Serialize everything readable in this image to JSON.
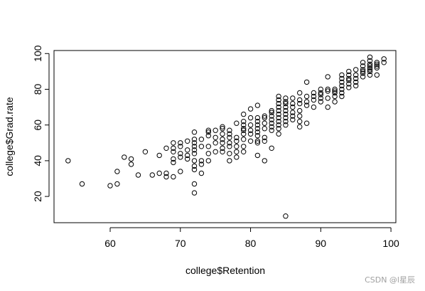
{
  "watermark": "CSDN @l星辰",
  "chart_data": {
    "type": "scatter",
    "title": "",
    "xlabel": "college$Retention",
    "ylabel": "college$Grad.rate",
    "xlim": [
      52.0,
      100.7
    ],
    "ylim": [
      5.3,
      101.7
    ],
    "xticks": [
      60,
      70,
      80,
      90,
      100
    ],
    "yticks": [
      20,
      40,
      60,
      80,
      100
    ],
    "grid": false,
    "legend": "none",
    "marker": "open-circle",
    "colors": {
      "marker": "#000000",
      "axis": "#000000",
      "background": "#ffffff"
    },
    "points": [
      [
        54,
        40
      ],
      [
        56,
        27
      ],
      [
        60,
        26
      ],
      [
        61,
        27
      ],
      [
        61,
        34
      ],
      [
        62,
        42
      ],
      [
        63,
        38
      ],
      [
        63,
        41
      ],
      [
        64,
        32
      ],
      [
        65,
        45
      ],
      [
        66,
        32
      ],
      [
        67,
        33
      ],
      [
        67,
        43
      ],
      [
        68,
        31
      ],
      [
        68,
        33
      ],
      [
        68,
        47
      ],
      [
        69,
        31
      ],
      [
        69,
        39
      ],
      [
        69,
        41
      ],
      [
        69,
        45
      ],
      [
        69,
        47
      ],
      [
        69,
        50
      ],
      [
        70,
        34
      ],
      [
        70,
        42
      ],
      [
        70,
        44
      ],
      [
        70,
        48
      ],
      [
        70,
        50
      ],
      [
        71,
        41
      ],
      [
        71,
        43
      ],
      [
        71,
        46
      ],
      [
        71,
        51
      ],
      [
        72,
        22
      ],
      [
        72,
        27
      ],
      [
        72,
        35
      ],
      [
        72,
        37
      ],
      [
        72,
        40
      ],
      [
        72,
        44
      ],
      [
        72,
        46
      ],
      [
        72,
        48
      ],
      [
        72,
        50
      ],
      [
        72,
        52
      ],
      [
        72,
        56
      ],
      [
        73,
        33
      ],
      [
        73,
        38
      ],
      [
        73,
        40
      ],
      [
        73,
        48
      ],
      [
        73,
        52
      ],
      [
        74,
        40
      ],
      [
        74,
        44
      ],
      [
        74,
        48
      ],
      [
        74,
        54
      ],
      [
        74,
        56
      ],
      [
        74,
        57
      ],
      [
        75,
        45
      ],
      [
        75,
        50
      ],
      [
        75,
        53
      ],
      [
        75,
        57
      ],
      [
        76,
        45
      ],
      [
        76,
        47
      ],
      [
        76,
        50
      ],
      [
        76,
        52
      ],
      [
        76,
        55
      ],
      [
        76,
        58
      ],
      [
        76,
        59
      ],
      [
        77,
        40
      ],
      [
        77,
        44
      ],
      [
        77,
        48
      ],
      [
        77,
        50
      ],
      [
        77,
        53
      ],
      [
        77,
        55
      ],
      [
        77,
        57
      ],
      [
        78,
        42
      ],
      [
        78,
        45
      ],
      [
        78,
        48
      ],
      [
        78,
        51
      ],
      [
        78,
        53
      ],
      [
        78,
        61
      ],
      [
        79,
        45
      ],
      [
        79,
        48
      ],
      [
        79,
        52
      ],
      [
        79,
        55
      ],
      [
        79,
        57
      ],
      [
        79,
        58
      ],
      [
        79,
        60
      ],
      [
        79,
        62
      ],
      [
        79,
        66
      ],
      [
        80,
        51
      ],
      [
        80,
        55
      ],
      [
        80,
        57
      ],
      [
        80,
        60
      ],
      [
        80,
        64
      ],
      [
        80,
        69
      ],
      [
        81,
        43
      ],
      [
        81,
        50
      ],
      [
        81,
        51
      ],
      [
        81,
        54
      ],
      [
        81,
        56
      ],
      [
        81,
        58
      ],
      [
        81,
        60
      ],
      [
        81,
        62
      ],
      [
        81,
        64
      ],
      [
        81,
        71
      ],
      [
        82,
        40
      ],
      [
        82,
        51
      ],
      [
        82,
        53
      ],
      [
        82,
        58
      ],
      [
        82,
        61
      ],
      [
        82,
        64
      ],
      [
        82,
        65
      ],
      [
        83,
        47
      ],
      [
        83,
        57
      ],
      [
        83,
        59
      ],
      [
        83,
        61
      ],
      [
        83,
        63
      ],
      [
        83,
        65
      ],
      [
        83,
        67
      ],
      [
        83,
        68
      ],
      [
        84,
        55
      ],
      [
        84,
        58
      ],
      [
        84,
        60
      ],
      [
        84,
        62
      ],
      [
        84,
        64
      ],
      [
        84,
        66
      ],
      [
        84,
        68
      ],
      [
        84,
        70
      ],
      [
        84,
        72
      ],
      [
        84,
        74
      ],
      [
        84,
        76
      ],
      [
        85,
        9
      ],
      [
        85,
        60
      ],
      [
        85,
        62
      ],
      [
        85,
        64
      ],
      [
        85,
        66
      ],
      [
        85,
        68
      ],
      [
        85,
        70
      ],
      [
        85,
        72
      ],
      [
        85,
        73
      ],
      [
        85,
        75
      ],
      [
        86,
        63
      ],
      [
        86,
        65
      ],
      [
        86,
        67
      ],
      [
        86,
        70
      ],
      [
        86,
        72
      ],
      [
        86,
        75
      ],
      [
        87,
        59
      ],
      [
        87,
        62
      ],
      [
        87,
        65
      ],
      [
        87,
        68
      ],
      [
        87,
        72
      ],
      [
        87,
        74
      ],
      [
        87,
        78
      ],
      [
        88,
        61
      ],
      [
        88,
        71
      ],
      [
        88,
        73
      ],
      [
        88,
        76
      ],
      [
        88,
        84
      ],
      [
        89,
        70
      ],
      [
        89,
        74
      ],
      [
        89,
        76
      ],
      [
        89,
        78
      ],
      [
        90,
        73
      ],
      [
        90,
        75
      ],
      [
        90,
        77
      ],
      [
        90,
        78
      ],
      [
        90,
        80
      ],
      [
        91,
        70
      ],
      [
        91,
        75
      ],
      [
        91,
        79
      ],
      [
        91,
        80
      ],
      [
        91,
        87
      ],
      [
        92,
        73
      ],
      [
        92,
        76
      ],
      [
        92,
        78
      ],
      [
        92,
        79
      ],
      [
        92,
        80
      ],
      [
        93,
        76
      ],
      [
        93,
        78
      ],
      [
        93,
        80
      ],
      [
        93,
        82
      ],
      [
        93,
        84
      ],
      [
        93,
        86
      ],
      [
        93,
        88
      ],
      [
        94,
        81
      ],
      [
        94,
        83
      ],
      [
        94,
        85
      ],
      [
        94,
        86
      ],
      [
        94,
        88
      ],
      [
        94,
        90
      ],
      [
        95,
        82
      ],
      [
        95,
        84
      ],
      [
        95,
        86
      ],
      [
        95,
        88
      ],
      [
        95,
        91
      ],
      [
        96,
        87
      ],
      [
        96,
        89
      ],
      [
        96,
        90
      ],
      [
        96,
        91
      ],
      [
        96,
        93
      ],
      [
        96,
        95
      ],
      [
        97,
        88
      ],
      [
        97,
        90
      ],
      [
        97,
        91
      ],
      [
        97,
        92
      ],
      [
        97,
        93
      ],
      [
        97,
        94
      ],
      [
        97,
        96
      ],
      [
        97,
        98
      ],
      [
        98,
        88
      ],
      [
        98,
        92
      ],
      [
        98,
        93
      ],
      [
        98,
        94
      ],
      [
        98,
        95
      ],
      [
        99,
        95
      ],
      [
        99,
        97
      ]
    ]
  }
}
